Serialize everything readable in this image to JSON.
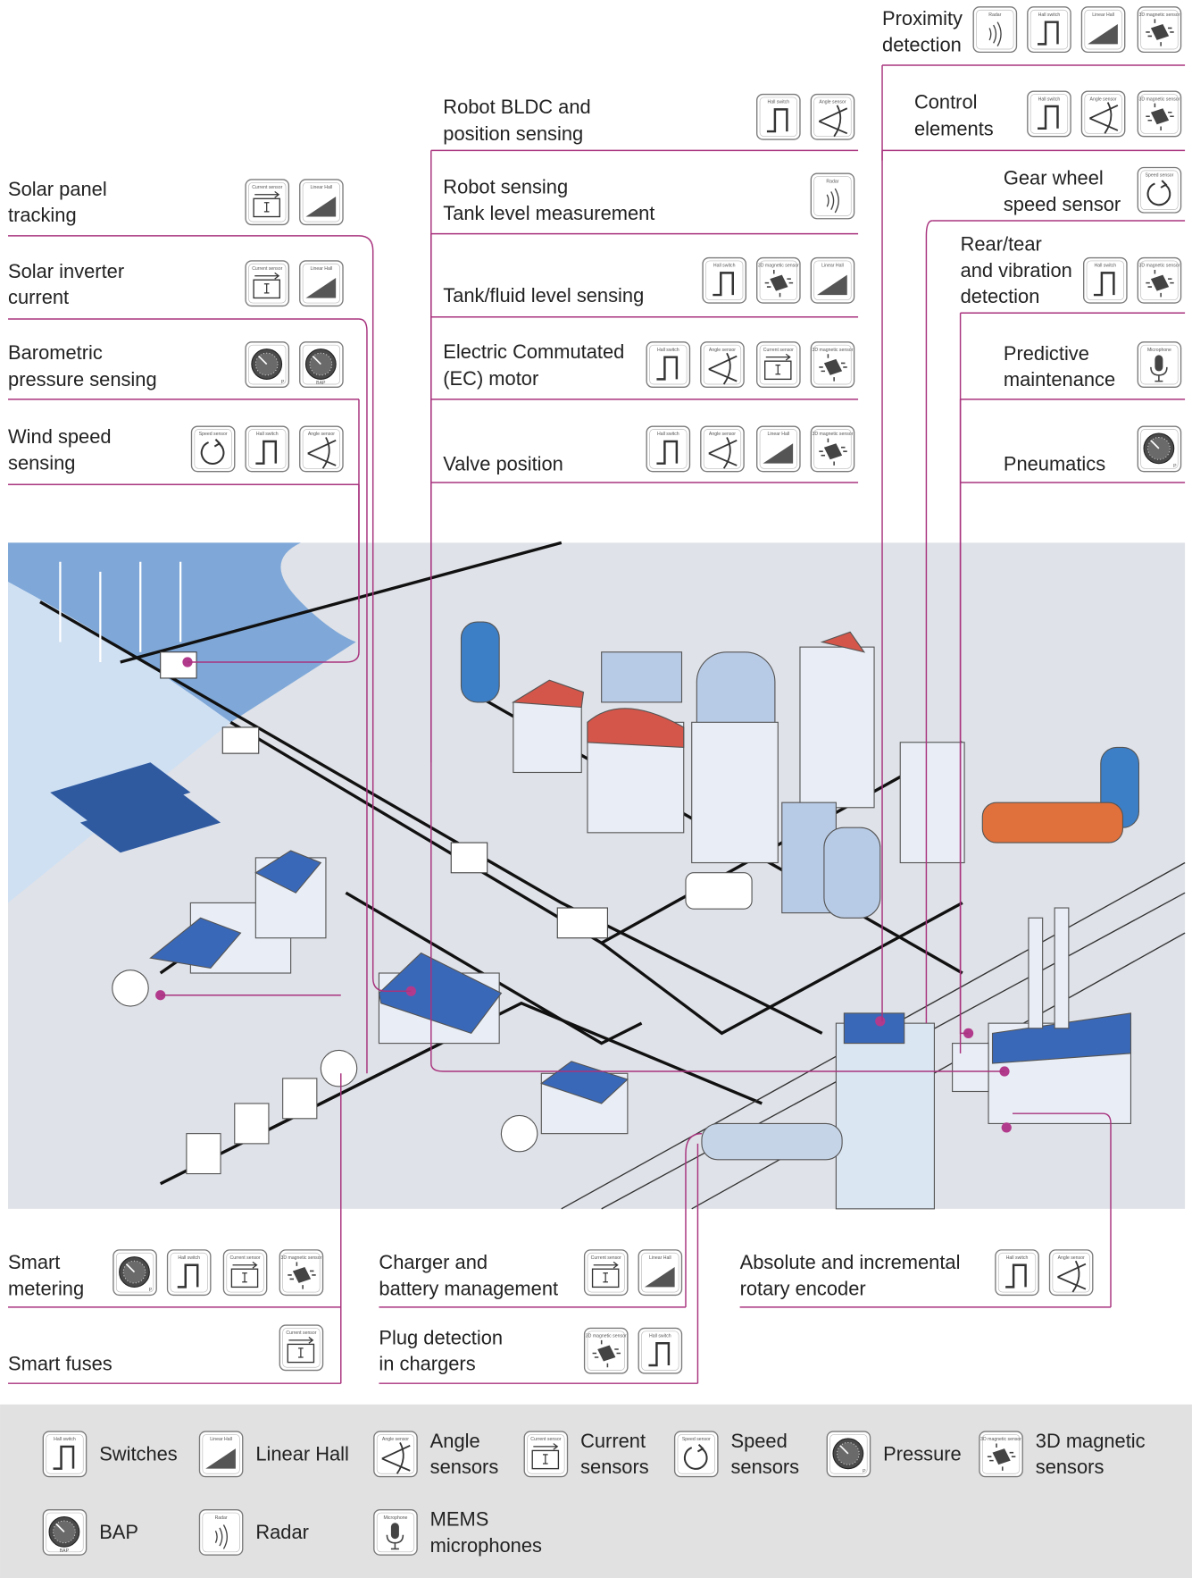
{
  "applications": [
    {
      "label": [
        "Solar panel",
        "tracking"
      ],
      "sensors": [
        "Current sensor",
        "Linear Hall"
      ]
    },
    {
      "label": [
        "Solar inverter",
        "current"
      ],
      "sensors": [
        "Current sensor",
        "Linear Hall"
      ]
    },
    {
      "label": [
        "Barometric",
        "pressure sensing"
      ],
      "sensors": [
        "P",
        "BAP"
      ]
    },
    {
      "label": [
        "Wind speed",
        "sensing"
      ],
      "sensors": [
        "Speed sensor",
        "Hall switch",
        "Angle sensor"
      ]
    },
    {
      "label": [
        "Robot BLDC and",
        "position sensing"
      ],
      "sensors": [
        "Hall switch",
        "Angle sensor"
      ]
    },
    {
      "label": [
        "Robot sensing",
        "Tank level measurement"
      ],
      "sensors": [
        "Radar"
      ]
    },
    {
      "label": [
        "Tank/fluid level sensing"
      ],
      "sensors": [
        "Hall switch",
        "3D magnetic sensor",
        "Linear Hall"
      ]
    },
    {
      "label": [
        "Electric Commutated",
        "(EC) motor"
      ],
      "sensors": [
        "Hall switch",
        "Angle sensor",
        "Current sensor",
        "3D magnetic sensor"
      ]
    },
    {
      "label": [
        "Valve position"
      ],
      "sensors": [
        "Hall switch",
        "Angle sensor",
        "Linear Hall",
        "3D magnetic sensor"
      ]
    },
    {
      "label": [
        "Proximity",
        "detection"
      ],
      "sensors": [
        "Radar",
        "Hall switch",
        "Linear Hall",
        "3D magnetic sensor"
      ]
    },
    {
      "label": [
        "Control",
        "elements"
      ],
      "sensors": [
        "Hall switch",
        "Angle sensor",
        "3D magnetic sensor"
      ]
    },
    {
      "label": [
        "Gear wheel",
        "speed sensor"
      ],
      "sensors": [
        "Speed sensor"
      ]
    },
    {
      "label": [
        "Rear/tear",
        "and vibration",
        "detection"
      ],
      "sensors": [
        "Hall switch",
        "3D magnetic sensor"
      ]
    },
    {
      "label": [
        "Predictive",
        "maintenance"
      ],
      "sensors": [
        "Microphone"
      ]
    },
    {
      "label": [
        "Pneumatics"
      ],
      "sensors": [
        "P"
      ]
    },
    {
      "label": [
        "Smart",
        "metering"
      ],
      "sensors": [
        "P",
        "Hall switch",
        "Current sensor",
        "3D magnetic sensor"
      ]
    },
    {
      "label": [
        "Smart fuses"
      ],
      "sensors": [
        "Current sensor"
      ]
    },
    {
      "label": [
        "Charger and",
        "battery management"
      ],
      "sensors": [
        "Current sensor",
        "Linear Hall"
      ]
    },
    {
      "label": [
        "Plug detection",
        "in chargers"
      ],
      "sensors": [
        "3D magnetic sensor",
        "Hall switch"
      ]
    },
    {
      "label": [
        "Absolute and incremental",
        "rotary encoder"
      ],
      "sensors": [
        "Hall switch",
        "Angle sensor"
      ]
    }
  ],
  "legend": [
    {
      "icon": "Hall switch",
      "label": [
        "Switches"
      ]
    },
    {
      "icon": "Linear Hall",
      "label": [
        "Linear Hall"
      ]
    },
    {
      "icon": "Angle sensor",
      "label": [
        "Angle",
        "sensors"
      ]
    },
    {
      "icon": "Current sensor",
      "label": [
        "Current",
        "sensors"
      ]
    },
    {
      "icon": "Speed sensor",
      "label": [
        "Speed",
        "sensors"
      ]
    },
    {
      "icon": "P",
      "label": [
        "Pressure"
      ]
    },
    {
      "icon": "3D magnetic sensor",
      "label": [
        "3D magnetic",
        "sensors"
      ]
    },
    {
      "icon": "BAP",
      "label": [
        "BAP"
      ]
    },
    {
      "icon": "Radar",
      "label": [
        "Radar"
      ]
    },
    {
      "icon": "Microphone",
      "label": [
        "MEMS",
        "microphones"
      ]
    }
  ]
}
